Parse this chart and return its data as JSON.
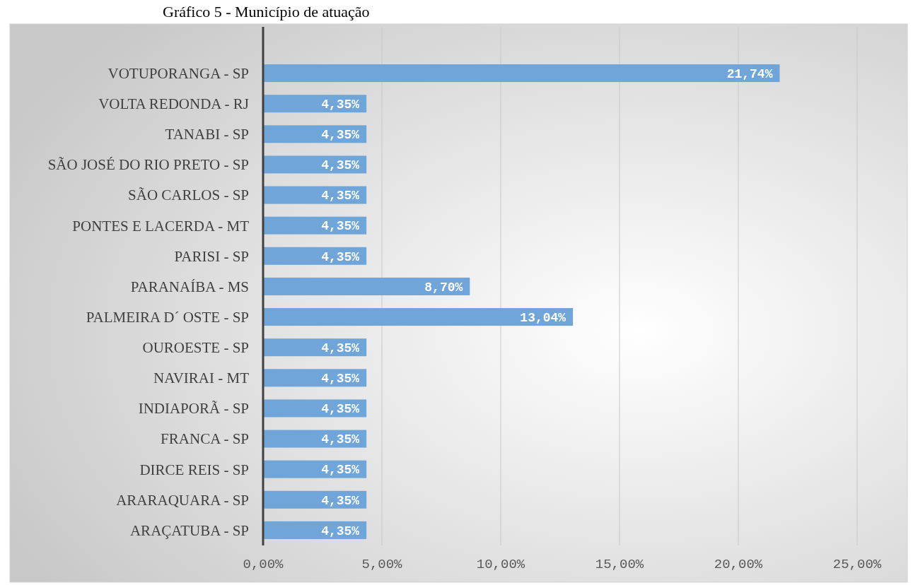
{
  "chart_data": {
    "type": "bar",
    "orientation": "horizontal",
    "title": "Gráfico 5 - Município de atuação",
    "categories": [
      "VOTUPORANGA - SP",
      "VOLTA REDONDA - RJ",
      "TANABI - SP",
      "SÃO JOSÉ DO RIO PRETO - SP",
      "SÃO CARLOS - SP",
      "PONTES E LACERDA - MT",
      "PARISI - SP",
      "PARANAÍBA - MS",
      "PALMEIRA D´ OSTE - SP",
      "OUROESTE - SP",
      "NAVIRAI - MT",
      "INDIAPORÃ - SP",
      "FRANCA - SP",
      "DIRCE REIS - SP",
      "ARARAQUARA - SP",
      "ARAÇATUBA - SP"
    ],
    "values": [
      21.74,
      4.35,
      4.35,
      4.35,
      4.35,
      4.35,
      4.35,
      8.7,
      13.04,
      4.35,
      4.35,
      4.35,
      4.35,
      4.35,
      4.35,
      4.35
    ],
    "value_labels": [
      "21,74%",
      "4,35%",
      "4,35%",
      "4,35%",
      "4,35%",
      "4,35%",
      "4,35%",
      "8,70%",
      "13,04%",
      "4,35%",
      "4,35%",
      "4,35%",
      "4,35%",
      "4,35%",
      "4,35%",
      "4,35%"
    ],
    "color": "#6fa5d9",
    "xlim": [
      0,
      25
    ],
    "xticks": [
      {
        "value": 0,
        "label": "0,00%"
      },
      {
        "value": 5,
        "label": "5,00%"
      },
      {
        "value": 10,
        "label": "10,00%"
      },
      {
        "value": 15,
        "label": "15,00%"
      },
      {
        "value": 20,
        "label": "20,00%"
      },
      {
        "value": 25,
        "label": "25,00%"
      }
    ],
    "grid": "x"
  }
}
